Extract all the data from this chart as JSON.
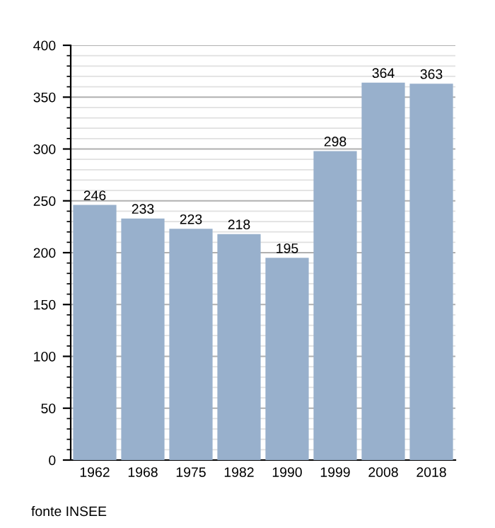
{
  "chart_data": {
    "type": "bar",
    "categories": [
      "1962",
      "1968",
      "1975",
      "1982",
      "1990",
      "1999",
      "2008",
      "2018"
    ],
    "values": [
      246,
      233,
      223,
      218,
      195,
      298,
      364,
      363
    ],
    "color": "#98b0cc",
    "data_labels": true,
    "ylim": [
      0,
      400
    ],
    "yticks": [
      0,
      50,
      100,
      150,
      200,
      250,
      300,
      350,
      400
    ],
    "grid": "y",
    "annotations": [
      "fonte INSEE"
    ]
  }
}
